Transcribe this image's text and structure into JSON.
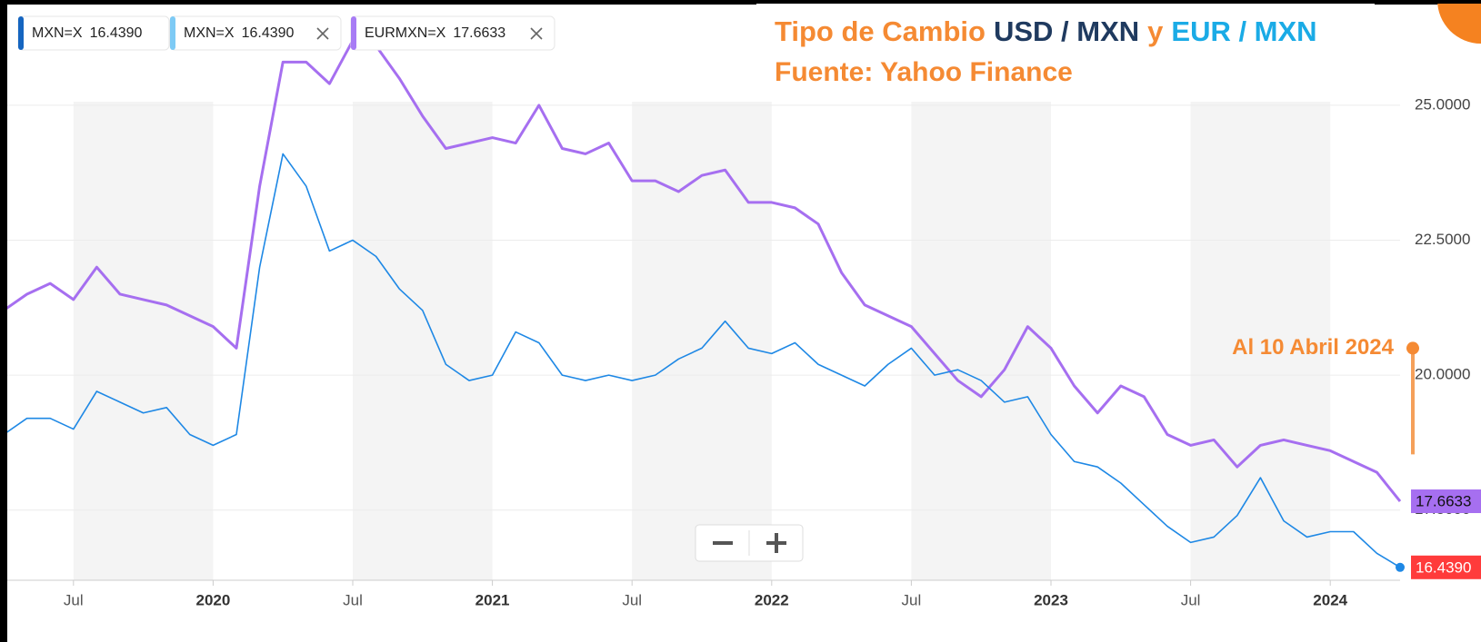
{
  "chart_data": {
    "type": "line",
    "title_parts": [
      {
        "text": "Tipo de Cambio",
        "color": "#f58a33"
      },
      {
        "text": "USD / MXN",
        "color": "#1f3a5f"
      },
      {
        "text": "y",
        "color": "#f58a33"
      },
      {
        "text": "EUR / MXN",
        "color": "#1aabe6"
      }
    ],
    "subtitle": "Fuente: Yahoo Finance",
    "annotation": "Al 10 Abril 2024",
    "legend": [
      {
        "name": "MXN=X",
        "label": "16.4390",
        "color": "#1565c0"
      },
      {
        "name": "MXN=X",
        "label": "16.4390",
        "color": "#7dcaf5"
      },
      {
        "name": "EURMXN=X",
        "label": "17.6633",
        "color": "#a87cf5"
      }
    ],
    "x": [
      "2019-04",
      "2019-05",
      "2019-06",
      "2019-07",
      "2019-08",
      "2019-09",
      "2019-10",
      "2019-11",
      "2019-12",
      "2020-01",
      "2020-02",
      "2020-03",
      "2020-04",
      "2020-05",
      "2020-06",
      "2020-07",
      "2020-08",
      "2020-09",
      "2020-10",
      "2020-11",
      "2020-12",
      "2021-01",
      "2021-02",
      "2021-03",
      "2021-04",
      "2021-05",
      "2021-06",
      "2021-07",
      "2021-08",
      "2021-09",
      "2021-10",
      "2021-11",
      "2021-12",
      "2022-01",
      "2022-02",
      "2022-03",
      "2022-04",
      "2022-05",
      "2022-06",
      "2022-07",
      "2022-08",
      "2022-09",
      "2022-10",
      "2022-11",
      "2022-12",
      "2023-01",
      "2023-02",
      "2023-03",
      "2023-04",
      "2023-05",
      "2023-06",
      "2023-07",
      "2023-08",
      "2023-09",
      "2023-10",
      "2023-11",
      "2023-12",
      "2024-01",
      "2024-02",
      "2024-03",
      "2024-04"
    ],
    "series": [
      {
        "color": "#1e88e5",
        "badge_color": "#ff3b3b",
        "badge_label": "16.4390",
        "values": [
          18.9,
          19.2,
          19.2,
          19.0,
          19.7,
          19.5,
          19.3,
          19.4,
          18.9,
          18.7,
          18.9,
          22.0,
          24.1,
          23.5,
          22.3,
          22.5,
          22.2,
          21.6,
          21.2,
          20.2,
          19.9,
          20.0,
          20.8,
          20.6,
          20.0,
          19.9,
          20.0,
          19.9,
          20.0,
          20.3,
          20.5,
          21.0,
          20.5,
          20.4,
          20.6,
          20.2,
          20.0,
          19.8,
          20.2,
          20.5,
          20.0,
          20.1,
          19.9,
          19.5,
          19.6,
          18.9,
          18.4,
          18.3,
          18.0,
          17.6,
          17.2,
          16.9,
          17.0,
          17.4,
          18.1,
          17.3,
          17.0,
          17.1,
          17.1,
          16.7,
          16.439
        ]
      },
      {
        "color": "#a66ff0",
        "badge_color": "#a66ff0",
        "badge_label": "17.6633",
        "values": [
          21.2,
          21.5,
          21.7,
          21.4,
          22.0,
          21.5,
          21.4,
          21.3,
          21.1,
          20.9,
          20.5,
          23.5,
          25.8,
          25.8,
          25.4,
          26.2,
          26.1,
          25.5,
          24.8,
          24.2,
          24.3,
          24.4,
          24.3,
          25.0,
          24.2,
          24.1,
          24.3,
          23.6,
          23.6,
          23.4,
          23.7,
          23.8,
          23.2,
          23.2,
          23.1,
          22.8,
          21.9,
          21.3,
          21.1,
          20.9,
          20.4,
          19.9,
          19.6,
          20.1,
          20.9,
          20.5,
          19.8,
          19.3,
          19.8,
          19.6,
          18.9,
          18.7,
          18.8,
          18.3,
          18.7,
          18.8,
          18.7,
          18.6,
          18.4,
          18.2,
          17.6633
        ]
      }
    ],
    "xlim": [
      "2019-04",
      "2024-04"
    ],
    "xticks": [
      {
        "value": "2019-07",
        "label": "Jul"
      },
      {
        "value": "2020-01",
        "label": "2020"
      },
      {
        "value": "2020-07",
        "label": "Jul"
      },
      {
        "value": "2021-01",
        "label": "2021"
      },
      {
        "value": "2021-07",
        "label": "Jul"
      },
      {
        "value": "2022-01",
        "label": "2022"
      },
      {
        "value": "2022-07",
        "label": "Jul"
      },
      {
        "value": "2023-01",
        "label": "2023"
      },
      {
        "value": "2023-07",
        "label": "Jul"
      },
      {
        "value": "2024-01",
        "label": "2024"
      }
    ],
    "ylim": [
      16.2,
      26.9
    ],
    "yticks": [
      {
        "value": 17.5,
        "label": "17.5000"
      },
      {
        "value": 20,
        "label": "20.0000"
      },
      {
        "value": 22.5,
        "label": "22.5000"
      },
      {
        "value": 25,
        "label": "25.0000"
      }
    ],
    "grid": true
  }
}
